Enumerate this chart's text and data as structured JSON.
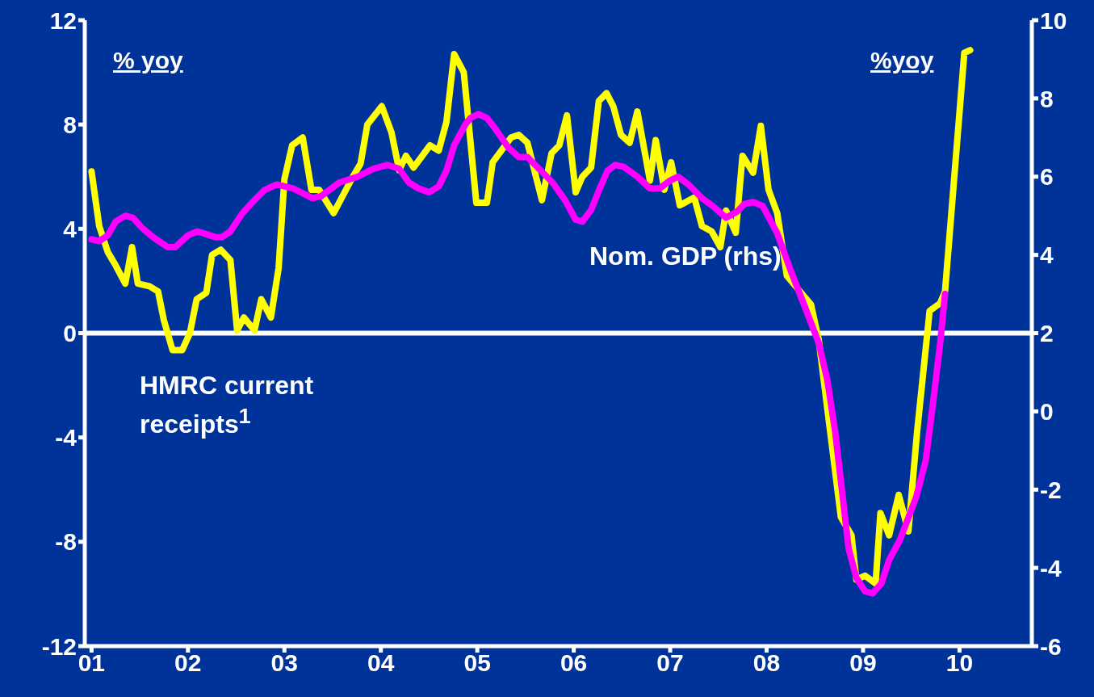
{
  "chart_data": {
    "type": "line",
    "annotations": [
      "% yoy",
      "%yoy"
    ],
    "xlim": [
      2000.93,
      2010.75
    ],
    "xticks": [
      {
        "value": 2001,
        "label": "01"
      },
      {
        "value": 2002,
        "label": "02"
      },
      {
        "value": 2003,
        "label": "03"
      },
      {
        "value": 2004,
        "label": "04"
      },
      {
        "value": 2005,
        "label": "05"
      },
      {
        "value": 2006,
        "label": "06"
      },
      {
        "value": 2007,
        "label": "07"
      },
      {
        "value": 2008,
        "label": "08"
      },
      {
        "value": 2009,
        "label": "09"
      },
      {
        "value": 2010,
        "label": "10"
      }
    ],
    "ylim": [
      -12,
      12
    ],
    "yticks": [
      -12,
      -8,
      -4,
      0,
      4,
      8,
      12
    ],
    "y2lim": [
      -6,
      10
    ],
    "y2ticks": [
      -6,
      -4,
      -2,
      0,
      2,
      4,
      6,
      8,
      10
    ],
    "ref_lines": [
      {
        "axis": "y",
        "value": 0,
        "color": "#ffffff"
      }
    ],
    "grid": false,
    "legend": false,
    "marker": "none",
    "line_style": "solid",
    "series": [
      {
        "name": "HMRC current receipts$^{1}$",
        "color": "#ffff00",
        "x": [
          2001.0,
          2001.08,
          2001.17,
          2001.25,
          2001.35,
          2001.42,
          2001.48,
          2001.6,
          2001.69,
          2001.75,
          2001.84,
          2001.94,
          2002.02,
          2002.09,
          2002.19,
          2002.25,
          2002.34,
          2002.44,
          2002.51,
          2002.58,
          2002.69,
          2002.76,
          2002.86,
          2002.94,
          2003.0,
          2003.08,
          2003.19,
          2003.28,
          2003.36,
          2003.51,
          2003.71,
          2003.79,
          2003.86,
          2004.01,
          2004.11,
          2004.19,
          2004.26,
          2004.34,
          2004.51,
          2004.6,
          2004.68,
          2004.76,
          2004.86,
          2004.99,
          2005.1,
          2005.16,
          2005.35,
          2005.43,
          2005.52,
          2005.67,
          2005.77,
          2005.85,
          2005.93,
          2006.02,
          2006.09,
          2006.18,
          2006.26,
          2006.34,
          2006.41,
          2006.49,
          2006.58,
          2006.66,
          2006.79,
          2006.85,
          2006.94,
          2007.01,
          2007.1,
          2007.25,
          2007.33,
          2007.43,
          2007.52,
          2007.58,
          2007.68,
          2007.75,
          2007.86,
          2007.94,
          2008.02,
          2008.11,
          2008.21,
          2008.46,
          2008.54,
          2008.77,
          2008.88,
          2008.93,
          2009.02,
          2009.13,
          2009.18,
          2009.27,
          2009.37,
          2009.47,
          2009.56,
          2009.69,
          2009.8,
          2009.85,
          2010.05,
          2010.11
        ],
        "values": [
          6.2,
          4.1,
          3.1,
          2.6,
          1.9,
          3.3,
          1.9,
          1.8,
          1.6,
          0.5,
          -0.65,
          -0.65,
          0,
          1.3,
          1.55,
          3.0,
          3.2,
          2.8,
          0.1,
          0.6,
          0.1,
          1.3,
          0.6,
          2.5,
          5.9,
          7.2,
          7.5,
          5.5,
          5.5,
          4.6,
          6.0,
          6.5,
          8.0,
          8.7,
          7.7,
          6.25,
          6.8,
          6.35,
          7.2,
          7.0,
          8.1,
          10.7,
          10.0,
          5.0,
          5.0,
          6.55,
          7.5,
          7.6,
          7.3,
          5.1,
          6.9,
          7.2,
          8.35,
          5.4,
          6.0,
          6.35,
          8.9,
          9.2,
          8.7,
          7.6,
          7.3,
          8.5,
          5.85,
          7.4,
          5.5,
          6.55,
          4.9,
          5.2,
          4.1,
          3.9,
          3.3,
          4.7,
          3.85,
          6.8,
          6.15,
          7.95,
          5.5,
          4.6,
          2.2,
          1.1,
          -0.25,
          -7.05,
          -7.75,
          -9.45,
          -9.3,
          -9.6,
          -6.9,
          -7.75,
          -6.2,
          -7.6,
          -3.8,
          0.85,
          1.15,
          1.6,
          10.75,
          10.85
        ]
      },
      {
        "name": "Nom. GDP (rhs)",
        "color": "#ff00ff",
        "axis": "y2",
        "x": [
          2001.0,
          2001.08,
          2001.17,
          2001.25,
          2001.35,
          2001.43,
          2001.52,
          2001.64,
          2001.79,
          2001.87,
          2002.0,
          2002.1,
          2002.29,
          2002.35,
          2002.44,
          2002.56,
          2002.67,
          2002.79,
          2002.92,
          2003.09,
          2003.29,
          2003.38,
          2003.57,
          2003.76,
          2003.92,
          2004.07,
          2004.19,
          2004.29,
          2004.39,
          2004.5,
          2004.6,
          2004.68,
          2004.76,
          2004.88,
          2004.93,
          2005.01,
          2005.1,
          2005.18,
          2005.32,
          2005.43,
          2005.52,
          2005.66,
          2005.78,
          2005.91,
          2006.02,
          2006.09,
          2006.18,
          2006.27,
          2006.35,
          2006.43,
          2006.52,
          2006.66,
          2006.79,
          2006.89,
          2007.0,
          2007.08,
          2007.19,
          2007.33,
          2007.44,
          2007.58,
          2007.69,
          2007.77,
          2007.86,
          2007.96,
          2008.11,
          2008.25,
          2008.4,
          2008.54,
          2008.63,
          2008.71,
          2008.79,
          2008.85,
          2008.93,
          2009.02,
          2009.1,
          2009.19,
          2009.27,
          2009.38,
          2009.55,
          2009.65,
          2009.73,
          2009.8,
          2009.85
        ],
        "values": [
          4.4,
          4.35,
          4.5,
          4.85,
          5.0,
          4.95,
          4.7,
          4.45,
          4.2,
          4.2,
          4.5,
          4.6,
          4.45,
          4.45,
          4.6,
          5.05,
          5.35,
          5.65,
          5.8,
          5.7,
          5.45,
          5.5,
          5.85,
          6.0,
          6.2,
          6.3,
          6.2,
          5.85,
          5.7,
          5.6,
          5.75,
          6.15,
          6.8,
          7.35,
          7.5,
          7.6,
          7.5,
          7.25,
          6.75,
          6.5,
          6.5,
          6.15,
          5.85,
          5.4,
          4.9,
          4.85,
          5.15,
          5.7,
          6.15,
          6.3,
          6.25,
          6.0,
          5.7,
          5.7,
          5.9,
          6.0,
          5.8,
          5.45,
          5.25,
          4.95,
          5.1,
          5.3,
          5.35,
          5.25,
          4.55,
          3.6,
          2.65,
          1.75,
          0.8,
          -0.5,
          -2.2,
          -3.5,
          -4.25,
          -4.6,
          -4.65,
          -4.4,
          -3.8,
          -3.3,
          -2.2,
          -1.25,
          0.3,
          1.75,
          3.0
        ]
      }
    ]
  }
}
